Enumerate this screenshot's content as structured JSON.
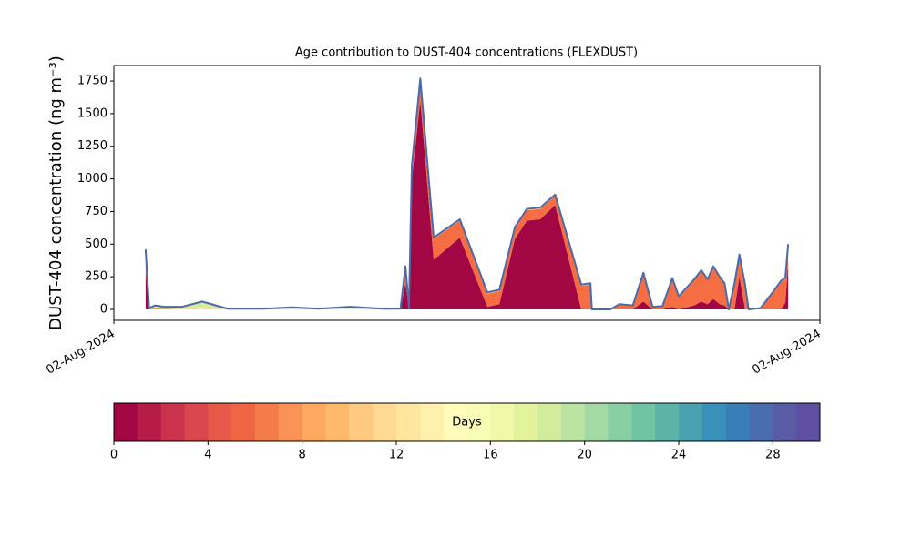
{
  "chart_data": {
    "type": "stacked-area",
    "title": "Age contribution to DUST-404 concentrations (FLEXDUST)",
    "y_label": "DUST-404 concentration (ng m⁻³)",
    "xlim": [
      0,
      1
    ],
    "xticks": [
      {
        "value": 0,
        "label": "02-Aug-2024"
      },
      {
        "value": 1,
        "label": "02-Aug-2024"
      }
    ],
    "ylim": [
      -84,
      1869
    ],
    "yticks": [
      0,
      250,
      500,
      750,
      1000,
      1250,
      1500,
      1750
    ],
    "x": [
      0.045,
      0.05,
      0.058,
      0.071,
      0.097,
      0.125,
      0.161,
      0.213,
      0.252,
      0.29,
      0.335,
      0.381,
      0.406,
      0.413,
      0.418,
      0.422,
      0.434,
      0.453,
      0.49,
      0.529,
      0.546,
      0.568,
      0.585,
      0.604,
      0.625,
      0.662,
      0.675,
      0.677,
      0.703,
      0.716,
      0.735,
      0.75,
      0.763,
      0.777,
      0.791,
      0.8,
      0.822,
      0.832,
      0.841,
      0.849,
      0.858,
      0.865,
      0.871,
      0.879,
      0.886,
      0.894,
      0.899,
      0.916,
      0.933,
      0.945,
      0.951,
      0.955
    ],
    "series": [
      {
        "color": "#a20643",
        "values": [
          300,
          0,
          0,
          0,
          0,
          0,
          0,
          0,
          0,
          0,
          0,
          0,
          0,
          200,
          0,
          1000,
          1600,
          380,
          550,
          20,
          40,
          540,
          680,
          690,
          800,
          0,
          0,
          0,
          0,
          0,
          0,
          60,
          0,
          0,
          20,
          0,
          30,
          60,
          40,
          80,
          40,
          30,
          0,
          0,
          250,
          0,
          0,
          0,
          0,
          0,
          50,
          350
        ]
      },
      {
        "color": "#f46d43",
        "values": [
          150,
          5,
          5,
          5,
          0,
          0,
          0,
          0,
          0,
          0,
          0,
          0,
          0,
          120,
          5,
          90,
          160,
          160,
          130,
          100,
          100,
          80,
          80,
          80,
          70,
          180,
          190,
          0,
          0,
          35,
          25,
          210,
          15,
          20,
          210,
          90,
          190,
          230,
          180,
          240,
          200,
          160,
          0,
          190,
          160,
          180,
          0,
          8,
          120,
          210,
          180,
          140
        ]
      },
      {
        "color": "#fee08b",
        "values": [
          10,
          5,
          15,
          10,
          10,
          20,
          2,
          2,
          5,
          2,
          5,
          2,
          2,
          10,
          5,
          10,
          10,
          10,
          10,
          10,
          10,
          10,
          10,
          10,
          10,
          10,
          10,
          0,
          0,
          5,
          5,
          10,
          5,
          5,
          10,
          10,
          10,
          10,
          10,
          10,
          10,
          10,
          0,
          10,
          10,
          10,
          0,
          2,
          10,
          10,
          10,
          10
        ]
      },
      {
        "color": "#d2ec9d",
        "values": [
          0,
          0,
          10,
          5,
          10,
          40,
          3,
          3,
          10,
          3,
          15,
          3,
          3,
          0,
          0,
          0,
          0,
          0,
          0,
          0,
          0,
          0,
          0,
          0,
          0,
          0,
          0,
          0,
          0,
          0,
          0,
          0,
          0,
          0,
          0,
          0,
          0,
          0,
          0,
          0,
          0,
          0,
          0,
          0,
          0,
          0,
          0,
          0,
          0,
          0,
          0,
          0
        ]
      }
    ],
    "total": {
      "color": "#4c6aa8",
      "values": [
        460,
        10,
        30,
        20,
        20,
        60,
        5,
        5,
        15,
        5,
        20,
        5,
        5,
        330,
        10,
        1100,
        1770,
        550,
        690,
        130,
        150,
        630,
        770,
        780,
        880,
        190,
        200,
        0,
        0,
        40,
        30,
        280,
        20,
        25,
        240,
        100,
        230,
        300,
        230,
        330,
        250,
        200,
        0,
        200,
        420,
        190,
        0,
        10,
        130,
        220,
        240,
        500
      ]
    },
    "colorbar": {
      "label": "Days",
      "xlim": [
        0,
        30
      ],
      "xticks": [
        0,
        4,
        8,
        12,
        16,
        20,
        24,
        28
      ],
      "colors": [
        "#a20643",
        "#b71c48",
        "#cb334d",
        "#da464d",
        "#e65848",
        "#ef6645",
        "#f67b4a",
        "#f99355",
        "#fca85e",
        "#fdba6d",
        "#fec980",
        "#fed993",
        "#fee5a0",
        "#fff0ae",
        "#fffbba",
        "#f9fcb5",
        "#f1f9a9",
        "#e2f39b",
        "#d2ec9d",
        "#bbe3a1",
        "#a2d9a4",
        "#88cfa4",
        "#70c4a4",
        "#5cb4a9",
        "#4aa2b1",
        "#3891bb",
        "#3a7eb8",
        "#4a6cae",
        "#5a5ba5",
        "#5e4fa2"
      ]
    }
  }
}
